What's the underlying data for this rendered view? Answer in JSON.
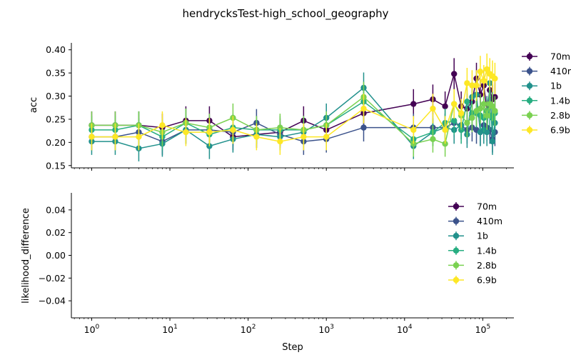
{
  "figure_title": "hendrycksTest-high_school_geography",
  "chart_data": [
    {
      "type": "line",
      "panel": "top",
      "ylabel": "acc",
      "xlabel": "",
      "xscale": "log",
      "xlim": [
        0.55,
        250000
      ],
      "ylim": [
        0.145,
        0.415
      ],
      "yticks": [
        "0.15",
        "0.20",
        "0.25",
        "0.30",
        "0.35",
        "0.40"
      ],
      "ytick_values": [
        0.15,
        0.2,
        0.25,
        0.3,
        0.35,
        0.4
      ],
      "grid": false,
      "legend_position": "right, outside plot",
      "series": [
        {
          "name": "70m",
          "color": "#440154",
          "x": [
            1,
            2,
            4,
            8,
            16,
            32,
            64,
            128,
            256,
            512,
            1000,
            3000,
            13000,
            23000,
            33000,
            43000,
            53000,
            63000,
            73000,
            83000,
            93000,
            103000,
            113000,
            123000,
            133000,
            143000
          ],
          "y": [
            0.237,
            0.237,
            0.237,
            0.232,
            0.247,
            0.247,
            0.212,
            0.217,
            0.222,
            0.247,
            0.227,
            0.263,
            0.283,
            0.293,
            0.278,
            0.348,
            0.278,
            0.273,
            0.288,
            0.338,
            0.303,
            0.323,
            0.268,
            0.313,
            0.293,
            0.298
          ],
          "err": [
            0.03,
            0.03,
            0.03,
            0.03,
            0.031,
            0.031,
            0.029,
            0.029,
            0.03,
            0.031,
            0.03,
            0.031,
            0.032,
            0.032,
            0.032,
            0.034,
            0.032,
            0.032,
            0.032,
            0.034,
            0.033,
            0.033,
            0.032,
            0.033,
            0.032,
            0.033
          ]
        },
        {
          "name": "410m",
          "color": "#3b528b",
          "x": [
            1,
            2,
            4,
            8,
            16,
            32,
            64,
            128,
            256,
            512,
            1000,
            3000,
            13000,
            23000,
            33000,
            43000,
            53000,
            63000,
            73000,
            83000,
            93000,
            103000,
            113000,
            123000,
            133000,
            143000
          ],
          "y": [
            0.212,
            0.212,
            0.222,
            0.202,
            0.227,
            0.227,
            0.222,
            0.242,
            0.217,
            0.202,
            0.207,
            0.232,
            0.232,
            0.232,
            0.232,
            0.242,
            0.237,
            0.227,
            0.232,
            0.227,
            0.222,
            0.237,
            0.232,
            0.227,
            0.207,
            0.222
          ],
          "err": [
            0.029,
            0.029,
            0.03,
            0.029,
            0.03,
            0.03,
            0.03,
            0.03,
            0.029,
            0.029,
            0.029,
            0.03,
            0.03,
            0.03,
            0.03,
            0.03,
            0.03,
            0.03,
            0.03,
            0.03,
            0.03,
            0.03,
            0.03,
            0.03,
            0.029,
            0.03
          ]
        },
        {
          "name": "1b",
          "color": "#21918c",
          "x": [
            1,
            2,
            4,
            8,
            16,
            32,
            64,
            128,
            256,
            512,
            1000,
            3000,
            13000,
            23000,
            33000,
            43000,
            53000,
            63000,
            73000,
            83000,
            93000,
            103000,
            113000,
            123000,
            133000,
            143000
          ],
          "y": [
            0.202,
            0.202,
            0.187,
            0.197,
            0.227,
            0.192,
            0.207,
            0.217,
            0.212,
            0.222,
            0.253,
            0.318,
            0.192,
            0.222,
            0.232,
            0.227,
            0.237,
            0.217,
            0.298,
            0.303,
            0.222,
            0.227,
            0.222,
            0.328,
            0.202,
            0.242
          ],
          "err": [
            0.029,
            0.029,
            0.028,
            0.028,
            0.03,
            0.028,
            0.029,
            0.029,
            0.029,
            0.03,
            0.031,
            0.033,
            0.028,
            0.03,
            0.03,
            0.03,
            0.03,
            0.029,
            0.033,
            0.033,
            0.03,
            0.03,
            0.03,
            0.033,
            0.029,
            0.031
          ]
        },
        {
          "name": "1.4b",
          "color": "#27ad81",
          "x": [
            1,
            2,
            4,
            8,
            16,
            32,
            64,
            128,
            256,
            512,
            1000,
            3000,
            13000,
            23000,
            33000,
            43000,
            53000,
            63000,
            73000,
            83000,
            93000,
            103000,
            113000,
            123000,
            133000,
            143000
          ],
          "y": [
            0.227,
            0.227,
            0.237,
            0.212,
            0.242,
            0.217,
            0.232,
            0.227,
            0.227,
            0.227,
            0.237,
            0.288,
            0.207,
            0.222,
            0.242,
            0.247,
            0.227,
            0.288,
            0.263,
            0.263,
            0.258,
            0.253,
            0.268,
            0.258,
            0.253,
            0.263
          ],
          "err": [
            0.03,
            0.03,
            0.03,
            0.029,
            0.031,
            0.029,
            0.03,
            0.03,
            0.03,
            0.03,
            0.03,
            0.032,
            0.029,
            0.03,
            0.031,
            0.031,
            0.03,
            0.032,
            0.031,
            0.031,
            0.031,
            0.031,
            0.031,
            0.031,
            0.031,
            0.031
          ]
        },
        {
          "name": "2.8b",
          "color": "#7ad151",
          "x": [
            1,
            2,
            4,
            8,
            16,
            32,
            64,
            128,
            256,
            512,
            1000,
            3000,
            13000,
            23000,
            33000,
            43000,
            53000,
            63000,
            73000,
            83000,
            93000,
            103000,
            113000,
            123000,
            133000,
            143000
          ],
          "y": [
            0.237,
            0.237,
            0.237,
            0.222,
            0.242,
            0.232,
            0.253,
            0.227,
            0.232,
            0.227,
            0.237,
            0.298,
            0.197,
            0.207,
            0.197,
            0.283,
            0.258,
            0.242,
            0.253,
            0.268,
            0.273,
            0.283,
            0.258,
            0.283,
            0.278,
            0.268
          ],
          "err": [
            0.03,
            0.03,
            0.03,
            0.03,
            0.031,
            0.03,
            0.031,
            0.03,
            0.03,
            0.03,
            0.03,
            0.033,
            0.028,
            0.029,
            0.028,
            0.032,
            0.031,
            0.031,
            0.031,
            0.032,
            0.032,
            0.032,
            0.031,
            0.032,
            0.032,
            0.032
          ]
        },
        {
          "name": "6.9b",
          "color": "#fde725",
          "x": [
            1,
            2,
            4,
            8,
            16,
            32,
            64,
            128,
            256,
            512,
            1000,
            3000,
            13000,
            23000,
            33000,
            43000,
            53000,
            63000,
            73000,
            83000,
            93000,
            103000,
            113000,
            123000,
            133000,
            143000
          ],
          "y": [
            0.212,
            0.212,
            0.212,
            0.237,
            0.222,
            0.222,
            0.227,
            0.212,
            0.202,
            0.212,
            0.212,
            0.273,
            0.227,
            0.273,
            0.227,
            0.283,
            0.263,
            0.328,
            0.323,
            0.323,
            0.353,
            0.333,
            0.358,
            0.348,
            0.343,
            0.338
          ],
          "err": [
            0.029,
            0.029,
            0.029,
            0.03,
            0.03,
            0.03,
            0.03,
            0.029,
            0.029,
            0.029,
            0.029,
            0.032,
            0.03,
            0.032,
            0.03,
            0.032,
            0.031,
            0.033,
            0.033,
            0.033,
            0.034,
            0.034,
            0.034,
            0.034,
            0.034,
            0.034
          ]
        }
      ]
    },
    {
      "type": "line",
      "panel": "bottom",
      "ylabel": "likelihood_difference",
      "xlabel": "Step",
      "xscale": "log",
      "xlim": [
        0.55,
        250000
      ],
      "ylim": [
        -0.055,
        0.055
      ],
      "yticks": [
        "0.04",
        "0.02",
        "0.00",
        "−0.02",
        "−0.04"
      ],
      "ytick_values": [
        0.04,
        0.02,
        0.0,
        -0.02,
        -0.04
      ],
      "xticks": [
        {
          "base": "10",
          "exp": "0",
          "value": 1
        },
        {
          "base": "10",
          "exp": "1",
          "value": 10
        },
        {
          "base": "10",
          "exp": "2",
          "value": 100
        },
        {
          "base": "10",
          "exp": "3",
          "value": 1000
        },
        {
          "base": "10",
          "exp": "4",
          "value": 10000
        },
        {
          "base": "10",
          "exp": "5",
          "value": 100000
        }
      ],
      "grid": false,
      "legend_position": "upper right, inside plot",
      "series": [
        {
          "name": "70m",
          "color": "#440154",
          "x": [],
          "y": []
        },
        {
          "name": "410m",
          "color": "#3b528b",
          "x": [],
          "y": []
        },
        {
          "name": "1b",
          "color": "#21918c",
          "x": [],
          "y": []
        },
        {
          "name": "1.4b",
          "color": "#27ad81",
          "x": [],
          "y": []
        },
        {
          "name": "2.8b",
          "color": "#7ad151",
          "x": [],
          "y": []
        },
        {
          "name": "6.9b",
          "color": "#fde725",
          "x": [],
          "y": []
        }
      ]
    }
  ]
}
